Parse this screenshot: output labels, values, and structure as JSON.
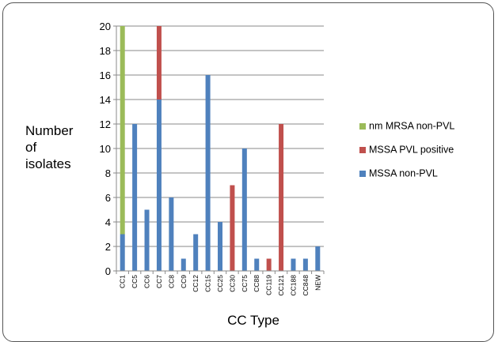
{
  "chart_data": {
    "type": "bar",
    "stacked": true,
    "categories": [
      "CC1",
      "CC5",
      "CC6",
      "CC7",
      "CC8",
      "CC9",
      "CC12",
      "CC15",
      "CC25",
      "CC30",
      "CC75",
      "CC88",
      "CC119",
      "CC121",
      "CC188",
      "CC848",
      "NEW"
    ],
    "series": [
      {
        "name": "MSSA non-PVL",
        "color": "#4f81bd",
        "values": [
          3,
          12,
          5,
          14,
          6,
          1,
          3,
          16,
          4,
          0,
          10,
          1,
          0,
          0,
          1,
          1,
          2
        ]
      },
      {
        "name": "MSSA PVL positive",
        "color": "#c0504d",
        "values": [
          0,
          0,
          0,
          6,
          0,
          0,
          0,
          0,
          0,
          7,
          0,
          0,
          1,
          12,
          0,
          0,
          0
        ]
      },
      {
        "name": "MRSA non-PVL",
        "color": "#9bbb59",
        "values": [
          17,
          0,
          0,
          0,
          0,
          0,
          0,
          0,
          0,
          0,
          0,
          0,
          0,
          0,
          0,
          0,
          0
        ]
      }
    ],
    "ylim": [
      0,
      20
    ],
    "yticks": [
      0,
      2,
      4,
      6,
      8,
      10,
      12,
      14,
      16,
      18,
      20
    ],
    "grid": true,
    "legend_position": "right",
    "ylabel_lines": [
      "Number",
      "of",
      "isolates"
    ],
    "xlabel": "CC Type"
  },
  "legend": {
    "items": [
      {
        "label": "MRSA non-PVL",
        "prefix": "nm ",
        "color": "#9bbb59"
      },
      {
        "label": "MSSA PVL positive",
        "prefix": "",
        "color": "#c0504d"
      },
      {
        "label": "MSSA non-PVL",
        "prefix": "",
        "color": "#4f81bd"
      }
    ]
  }
}
